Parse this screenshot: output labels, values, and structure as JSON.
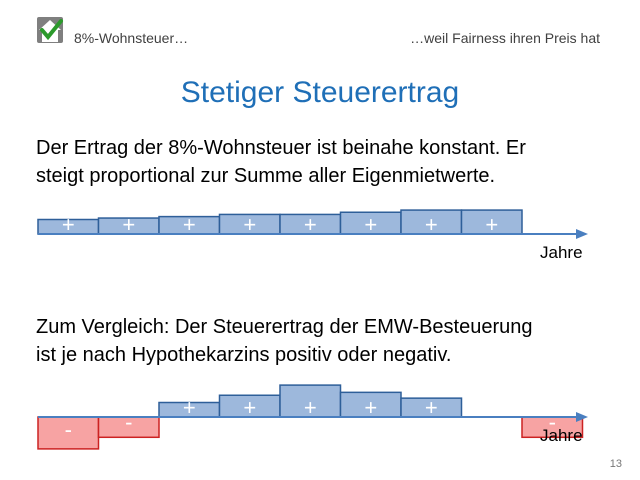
{
  "header": {
    "left_text": "8%-Wohnsteuer…",
    "right_text": "…weil Fairness ihren Preis hat"
  },
  "title": "Stetiger Steuerertrag",
  "paragraph1": {
    "line1": "Der Ertrag der 8%-Wohnsteuer  ist beinahe konstant. Er",
    "line2": "steigt proportional zur Summe aller Eigenmietwerte."
  },
  "paragraph2": {
    "line1": "Zum Vergleich:  Der Steuerertrag der EMW-Besteuerung",
    "line2": "ist je nach Hypothekarzins positiv oder negativ."
  },
  "page_number": "13",
  "colors": {
    "title": "#1f6fb7",
    "positive_fill": "#9db8dc",
    "positive_stroke": "#2e5f99",
    "negative_fill": "#f7a3a3",
    "negative_stroke": "#cc2222",
    "axis": "#4a7fc0",
    "logo_green": "#2c9a2c"
  },
  "chart_data": [
    {
      "type": "bar",
      "xlabel": "Jahre",
      "categories": [
        "",
        "",
        "",
        "",
        "",
        "",
        "",
        ""
      ],
      "values": [
        1.0,
        1.1,
        1.2,
        1.35,
        1.35,
        1.5,
        1.65,
        1.65
      ],
      "bar_signs": [
        "+",
        "+",
        "+",
        "+",
        "+",
        "+",
        "+",
        "+"
      ]
    },
    {
      "type": "bar",
      "xlabel": "Jahre",
      "categories": [
        "",
        "",
        "",
        "",
        "",
        "",
        "",
        "",
        "",
        "",
        "",
        ""
      ],
      "values": [
        -2.2,
        -1.4,
        1.0,
        1.5,
        2.2,
        1.7,
        1.3,
        null,
        -1.4,
        null,
        null,
        null
      ],
      "bar_signs": [
        "-",
        "-",
        "+",
        "+",
        "+",
        "+",
        "+",
        "",
        "-",
        "",
        "",
        ""
      ]
    }
  ]
}
